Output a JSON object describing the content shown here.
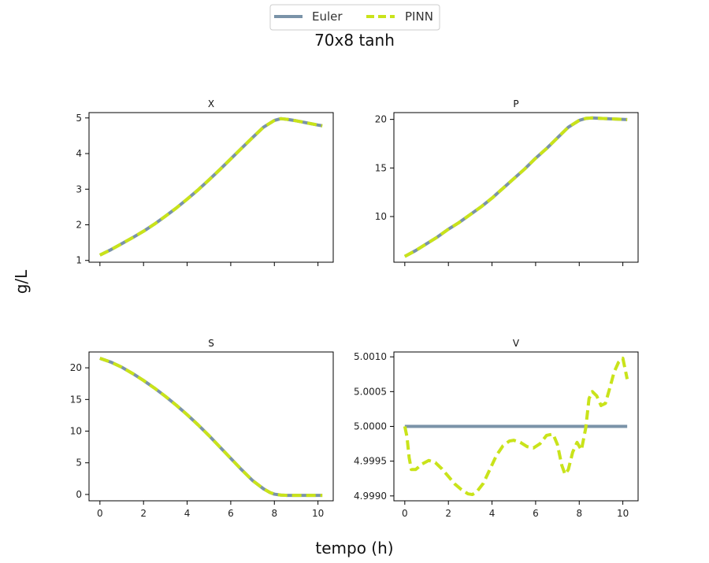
{
  "title": "70x8 tanh",
  "xlabel": "tempo (h)",
  "ylabel": "g/L",
  "legend": {
    "placement": "top-center",
    "items": [
      {
        "label": "Euler",
        "color": "#7a93a8",
        "style": "solid"
      },
      {
        "label": "PINN",
        "color": "#c9e31a",
        "style": "dashed"
      }
    ]
  },
  "chart_data": [
    {
      "type": "line",
      "title": "X",
      "xlim": [
        -0.5,
        10.7
      ],
      "ylim": [
        0.95,
        5.15
      ],
      "xticks": [
        0,
        2,
        4,
        6,
        8,
        10
      ],
      "show_xtick_labels": false,
      "yticks": [
        1,
        2,
        3,
        4,
        5
      ],
      "ytick_labels": [
        "1",
        "2",
        "3",
        "4",
        "5"
      ],
      "series": [
        {
          "name": "Euler",
          "x": [
            0,
            0.5,
            1,
            1.5,
            2,
            2.5,
            3,
            3.5,
            4,
            4.5,
            5,
            5.5,
            6,
            6.5,
            7,
            7.5,
            8,
            8.3,
            8.6,
            9,
            9.5,
            10,
            10.2
          ],
          "y": [
            1.15,
            1.3,
            1.47,
            1.64,
            1.82,
            2.02,
            2.24,
            2.47,
            2.72,
            2.98,
            3.26,
            3.55,
            3.85,
            4.15,
            4.45,
            4.74,
            4.93,
            4.98,
            4.96,
            4.92,
            4.86,
            4.8,
            4.78
          ]
        },
        {
          "name": "PINN",
          "x": [
            0,
            0.5,
            1,
            1.5,
            2,
            2.5,
            3,
            3.5,
            4,
            4.5,
            5,
            5.5,
            6,
            6.5,
            7,
            7.5,
            8,
            8.3,
            8.6,
            9,
            9.5,
            10,
            10.2
          ],
          "y": [
            1.15,
            1.3,
            1.47,
            1.64,
            1.82,
            2.02,
            2.24,
            2.47,
            2.72,
            2.98,
            3.26,
            3.55,
            3.85,
            4.15,
            4.45,
            4.74,
            4.93,
            4.98,
            4.96,
            4.92,
            4.86,
            4.8,
            4.78
          ]
        }
      ]
    },
    {
      "type": "line",
      "title": "P",
      "xlim": [
        -0.5,
        10.7
      ],
      "ylim": [
        5.3,
        20.7
      ],
      "xticks": [
        0,
        2,
        4,
        6,
        8,
        10
      ],
      "show_xtick_labels": false,
      "yticks": [
        10,
        15,
        20
      ],
      "ytick_labels": [
        "10",
        "15",
        "20"
      ],
      "series": [
        {
          "name": "Euler",
          "x": [
            0,
            0.5,
            1,
            1.5,
            2,
            2.5,
            3,
            3.5,
            4,
            4.5,
            5,
            5.5,
            6,
            6.5,
            7,
            7.5,
            8,
            8.3,
            8.6,
            9,
            9.5,
            10,
            10.2
          ],
          "y": [
            5.9,
            6.5,
            7.2,
            7.9,
            8.7,
            9.4,
            10.2,
            11.0,
            11.9,
            12.9,
            13.9,
            14.9,
            16.0,
            17.0,
            18.1,
            19.2,
            19.9,
            20.1,
            20.15,
            20.1,
            20.05,
            20.0,
            19.98
          ]
        },
        {
          "name": "PINN",
          "x": [
            0,
            0.5,
            1,
            1.5,
            2,
            2.5,
            3,
            3.5,
            4,
            4.5,
            5,
            5.5,
            6,
            6.5,
            7,
            7.5,
            8,
            8.3,
            8.6,
            9,
            9.5,
            10,
            10.2
          ],
          "y": [
            5.9,
            6.5,
            7.2,
            7.9,
            8.7,
            9.4,
            10.2,
            11.0,
            11.9,
            12.9,
            13.9,
            14.9,
            16.0,
            17.0,
            18.1,
            19.2,
            19.9,
            20.1,
            20.15,
            20.1,
            20.05,
            20.0,
            19.98
          ]
        }
      ]
    },
    {
      "type": "line",
      "title": "S",
      "xlim": [
        -0.5,
        10.7
      ],
      "ylim": [
        -1.0,
        22.5
      ],
      "xticks": [
        0,
        2,
        4,
        6,
        8,
        10
      ],
      "show_xtick_labels": true,
      "xtick_labels": [
        "0",
        "2",
        "4",
        "6",
        "8",
        "10"
      ],
      "yticks": [
        0,
        5,
        10,
        15,
        20
      ],
      "ytick_labels": [
        "0",
        "5",
        "10",
        "15",
        "20"
      ],
      "series": [
        {
          "name": "Euler",
          "x": [
            0,
            0.5,
            1,
            1.5,
            2,
            2.5,
            3,
            3.5,
            4,
            4.5,
            5,
            5.5,
            6,
            6.5,
            7,
            7.5,
            7.8,
            8,
            8.3,
            8.6,
            9,
            9.5,
            10,
            10.2
          ],
          "y": [
            21.5,
            20.9,
            20.1,
            19.1,
            18.0,
            16.8,
            15.5,
            14.1,
            12.6,
            11.0,
            9.3,
            7.5,
            5.7,
            3.9,
            2.2,
            0.9,
            0.3,
            0.05,
            -0.1,
            -0.15,
            -0.15,
            -0.15,
            -0.15,
            -0.15
          ]
        },
        {
          "name": "PINN",
          "x": [
            0,
            0.5,
            1,
            1.5,
            2,
            2.5,
            3,
            3.5,
            4,
            4.5,
            5,
            5.5,
            6,
            6.5,
            7,
            7.5,
            7.8,
            8,
            8.3,
            8.6,
            9,
            9.5,
            10,
            10.2
          ],
          "y": [
            21.5,
            20.9,
            20.1,
            19.1,
            18.0,
            16.8,
            15.5,
            14.1,
            12.6,
            11.0,
            9.3,
            7.5,
            5.7,
            3.9,
            2.2,
            0.9,
            0.3,
            0.05,
            -0.1,
            -0.15,
            -0.15,
            -0.15,
            -0.15,
            -0.15
          ]
        }
      ]
    },
    {
      "type": "line",
      "title": "V",
      "xlim": [
        -0.5,
        10.7
      ],
      "ylim": [
        4.99893,
        5.00107
      ],
      "xticks": [
        0,
        2,
        4,
        6,
        8,
        10
      ],
      "show_xtick_labels": true,
      "xtick_labels": [
        "0",
        "2",
        "4",
        "6",
        "8",
        "10"
      ],
      "yticks": [
        4.999,
        4.9995,
        5.0,
        5.0005,
        5.001
      ],
      "ytick_labels": [
        "4.9990",
        "4.9995",
        "5.0000",
        "5.0005",
        "5.0010"
      ],
      "series": [
        {
          "name": "Euler",
          "x": [
            0,
            10.2
          ],
          "y": [
            5.0,
            5.0
          ]
        },
        {
          "name": "PINN",
          "x": [
            0,
            0.1,
            0.2,
            0.3,
            0.5,
            0.8,
            1.1,
            1.4,
            1.7,
            2.0,
            2.3,
            2.6,
            2.9,
            3.1,
            3.3,
            3.6,
            3.9,
            4.2,
            4.5,
            4.8,
            5.0,
            5.3,
            5.6,
            5.9,
            6.2,
            6.5,
            6.8,
            7.0,
            7.2,
            7.35,
            7.5,
            7.7,
            7.9,
            8.1,
            8.3,
            8.45,
            8.6,
            8.8,
            9.0,
            9.2,
            9.4,
            9.6,
            9.8,
            10.0,
            10.2
          ],
          "y": [
            5.0,
            4.99985,
            4.99955,
            4.99938,
            4.99938,
            4.99946,
            4.99951,
            4.99948,
            4.99939,
            4.99928,
            4.99917,
            4.99909,
            4.99903,
            4.99902,
            4.99906,
            4.99918,
            4.99938,
            4.99958,
            4.99972,
            4.99979,
            4.9998,
            4.99977,
            4.99971,
            4.99969,
            4.99975,
            4.99987,
            4.99989,
            4.99974,
            4.99944,
            4.99931,
            4.99938,
            4.99963,
            4.99977,
            4.99966,
            4.99998,
            5.0004,
            5.0005,
            5.00044,
            5.0003,
            5.00033,
            5.00055,
            5.00078,
            5.00092,
            5.00098,
            5.00068
          ]
        }
      ]
    }
  ]
}
